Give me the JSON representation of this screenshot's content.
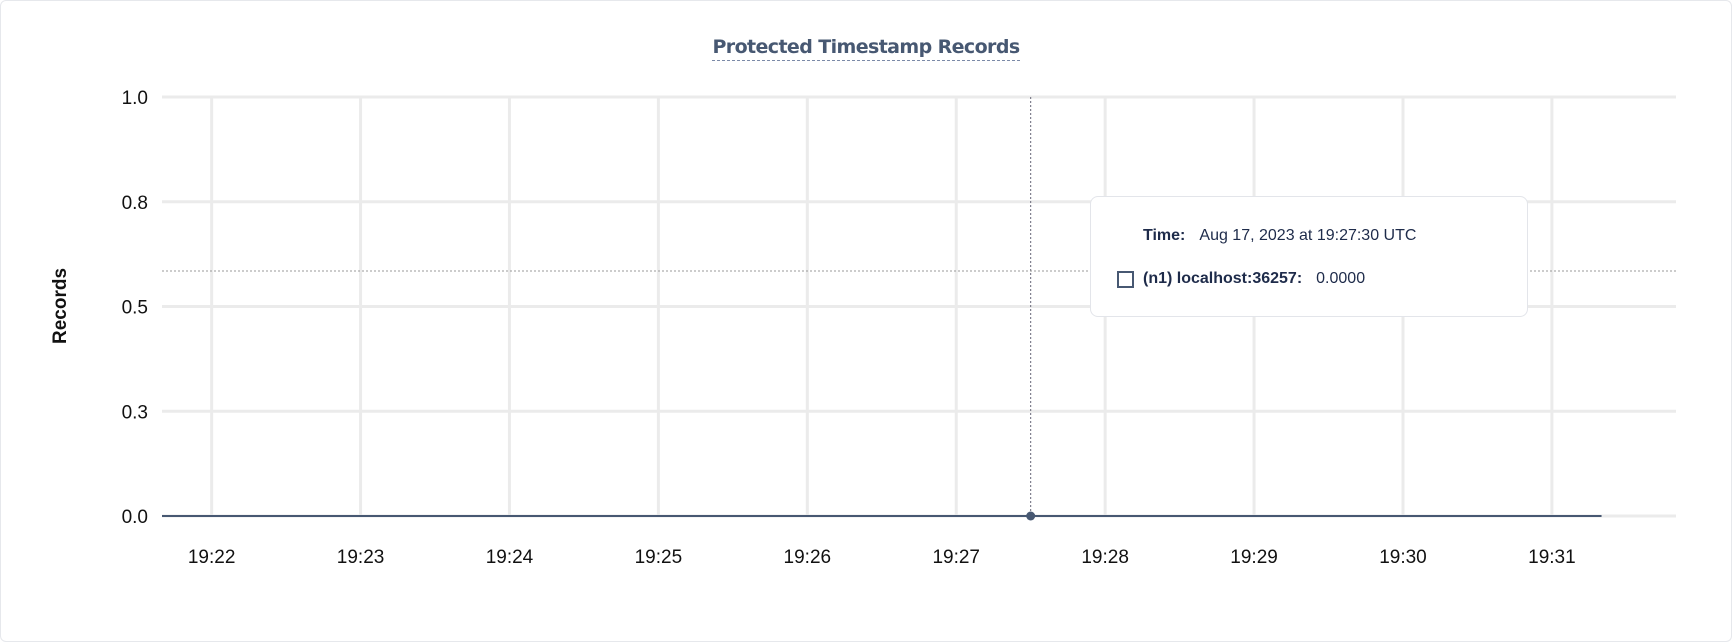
{
  "chart_data": {
    "type": "line",
    "title": "Protected Timestamp Records",
    "ylabel": "Records",
    "xlabel": "",
    "ylim": [
      0,
      1
    ],
    "y_ticks": [
      {
        "value": 0,
        "label": "0.0"
      },
      {
        "value": 0.25,
        "label": "0.3"
      },
      {
        "value": 0.5,
        "label": "0.5"
      },
      {
        "value": 0.75,
        "label": "0.8"
      },
      {
        "value": 1,
        "label": "1.0"
      }
    ],
    "x_ticks": [
      "19:22",
      "19:23",
      "19:24",
      "19:25",
      "19:26",
      "19:27",
      "19:28",
      "19:29",
      "19:30",
      "19:31"
    ],
    "xlim": [
      "19:21:40",
      "19:31:50"
    ],
    "grid": true,
    "series": [
      {
        "name": "(n1) localhost:36257",
        "color": "#475872",
        "x": [
          "19:21:40",
          "19:31:20"
        ],
        "y": [
          0,
          0
        ]
      }
    ]
  },
  "tooltip": {
    "time_label": "Time:",
    "time_value": "Aug 17, 2023 at 19:27:30 UTC",
    "series_label": "(n1) localhost:36257:",
    "series_value": "0.0000",
    "hover_x": "19:27:30"
  }
}
